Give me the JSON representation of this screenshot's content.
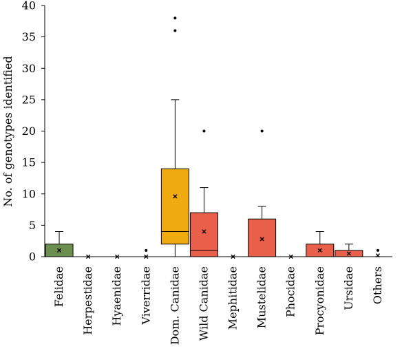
{
  "chart_data": {
    "type": "box",
    "ylabel": "No. of genotypes identified",
    "xlabel": "",
    "ylim": [
      0,
      40
    ],
    "yticks": [
      0,
      5,
      10,
      15,
      20,
      25,
      30,
      35,
      40
    ],
    "grid": false,
    "categories": [
      "Felidae",
      "Herpestidae",
      "Hyaenidae",
      "Viverridae",
      "Dom. Canidae",
      "Wild Canidae",
      "Mephitidae",
      "Mustelidae",
      "Phocidae",
      "Procyonidae",
      "Ursidae",
      "Others"
    ],
    "boxes": [
      {
        "category": "Felidae",
        "min": 0,
        "q1": 0,
        "median": 0,
        "q3": 2,
        "max": 4,
        "mean": 1,
        "outliers": [],
        "color": "#6a8f4e"
      },
      {
        "category": "Herpestidae",
        "min": 0,
        "q1": 0,
        "median": 0,
        "q3": 0,
        "max": 0,
        "mean": 0,
        "outliers": [],
        "color": "#6a8f4e"
      },
      {
        "category": "Hyaenidae",
        "min": 0,
        "q1": 0,
        "median": 0,
        "q3": 0,
        "max": 0,
        "mean": 0,
        "outliers": [],
        "color": "#6a8f4e"
      },
      {
        "category": "Viverridae",
        "min": 0,
        "q1": 0,
        "median": 0,
        "q3": 0,
        "max": 0,
        "mean": 0,
        "outliers": [
          1
        ],
        "color": "#6a8f4e"
      },
      {
        "category": "Dom. Canidae",
        "min": 0,
        "q1": 2,
        "median": 4,
        "q3": 14,
        "max": 25,
        "mean": 9.6,
        "outliers": [
          36,
          38
        ],
        "color": "#f0ab10"
      },
      {
        "category": "Wild Canidae",
        "min": 0,
        "q1": 0,
        "median": 1,
        "q3": 7,
        "max": 11,
        "mean": 4,
        "outliers": [
          20
        ],
        "color": "#e8604a"
      },
      {
        "category": "Mephitidae",
        "min": 0,
        "q1": 0,
        "median": 0,
        "q3": 0,
        "max": 0,
        "mean": 0,
        "outliers": [],
        "color": "#e8604a"
      },
      {
        "category": "Mustelidae",
        "min": 0,
        "q1": 0,
        "median": 0,
        "q3": 6,
        "max": 8,
        "mean": 2.8,
        "outliers": [
          20
        ],
        "color": "#e8604a"
      },
      {
        "category": "Phocidae",
        "min": 0,
        "q1": 0,
        "median": 0,
        "q3": 0,
        "max": 0,
        "mean": 0,
        "outliers": [],
        "color": "#e8604a"
      },
      {
        "category": "Procyonidae",
        "min": 0,
        "q1": 0,
        "median": 0,
        "q3": 2,
        "max": 4,
        "mean": 1,
        "outliers": [],
        "color": "#e8604a"
      },
      {
        "category": "Ursidae",
        "min": 0,
        "q1": 0,
        "median": 0,
        "q3": 1,
        "max": 2,
        "mean": 0.5,
        "outliers": [],
        "color": "#e8604a"
      },
      {
        "category": "Others",
        "min": 0,
        "q1": 0,
        "median": 0,
        "q3": 0,
        "max": 0,
        "mean": 0.2,
        "outliers": [
          1
        ],
        "color": "#e8604a"
      }
    ]
  }
}
